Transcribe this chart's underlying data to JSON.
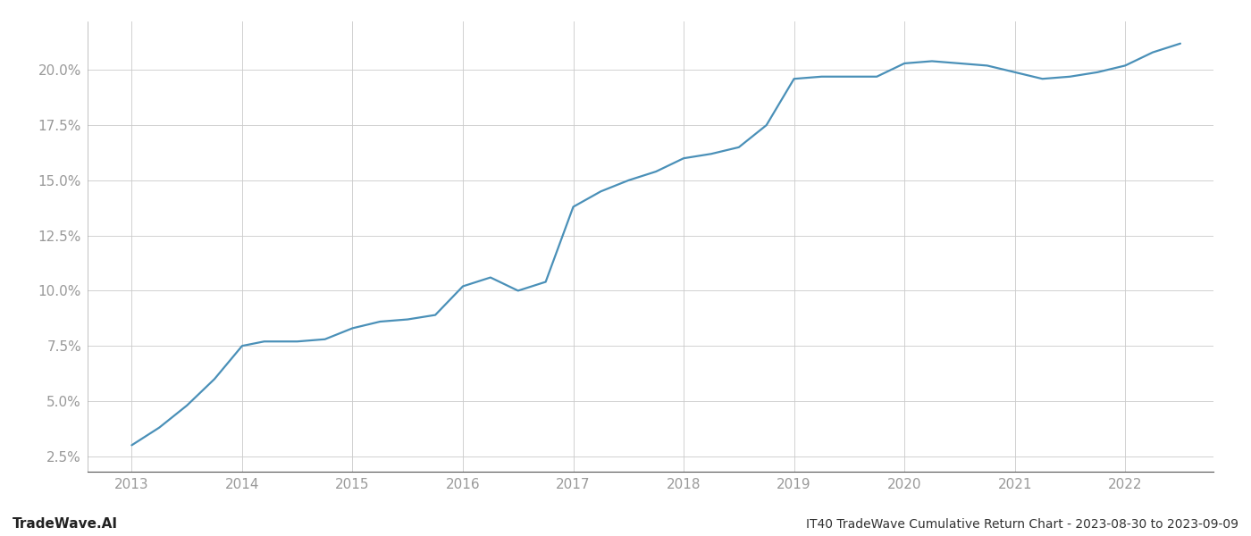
{
  "title": "IT40 TradeWave Cumulative Return Chart - 2023-08-30 to 2023-09-09",
  "watermark": "TradeWave.AI",
  "line_color": "#4a90b8",
  "background_color": "#ffffff",
  "grid_color": "#cccccc",
  "x_values": [
    2013.0,
    2013.25,
    2013.5,
    2013.75,
    2014.0,
    2014.2,
    2014.5,
    2014.75,
    2015.0,
    2015.25,
    2015.5,
    2015.75,
    2016.0,
    2016.25,
    2016.5,
    2016.75,
    2017.0,
    2017.25,
    2017.5,
    2017.75,
    2018.0,
    2018.25,
    2018.5,
    2018.75,
    2019.0,
    2019.25,
    2019.5,
    2019.75,
    2020.0,
    2020.25,
    2020.5,
    2020.75,
    2021.0,
    2021.25,
    2021.5,
    2021.75,
    2022.0,
    2022.25,
    2022.5
  ],
  "y_values": [
    0.03,
    0.038,
    0.048,
    0.06,
    0.075,
    0.077,
    0.077,
    0.078,
    0.083,
    0.086,
    0.087,
    0.089,
    0.102,
    0.106,
    0.1,
    0.104,
    0.138,
    0.145,
    0.15,
    0.154,
    0.16,
    0.162,
    0.165,
    0.175,
    0.196,
    0.197,
    0.197,
    0.197,
    0.203,
    0.204,
    0.203,
    0.202,
    0.199,
    0.196,
    0.197,
    0.199,
    0.202,
    0.208,
    0.212
  ],
  "xlim": [
    2012.6,
    2022.8
  ],
  "ylim": [
    0.018,
    0.222
  ],
  "yticks": [
    0.025,
    0.05,
    0.075,
    0.1,
    0.125,
    0.15,
    0.175,
    0.2
  ],
  "xticks": [
    2013,
    2014,
    2015,
    2016,
    2017,
    2018,
    2019,
    2020,
    2021,
    2022
  ],
  "line_width": 1.6,
  "tick_label_color": "#999999",
  "footer_color": "#333333",
  "watermark_color": "#222222"
}
